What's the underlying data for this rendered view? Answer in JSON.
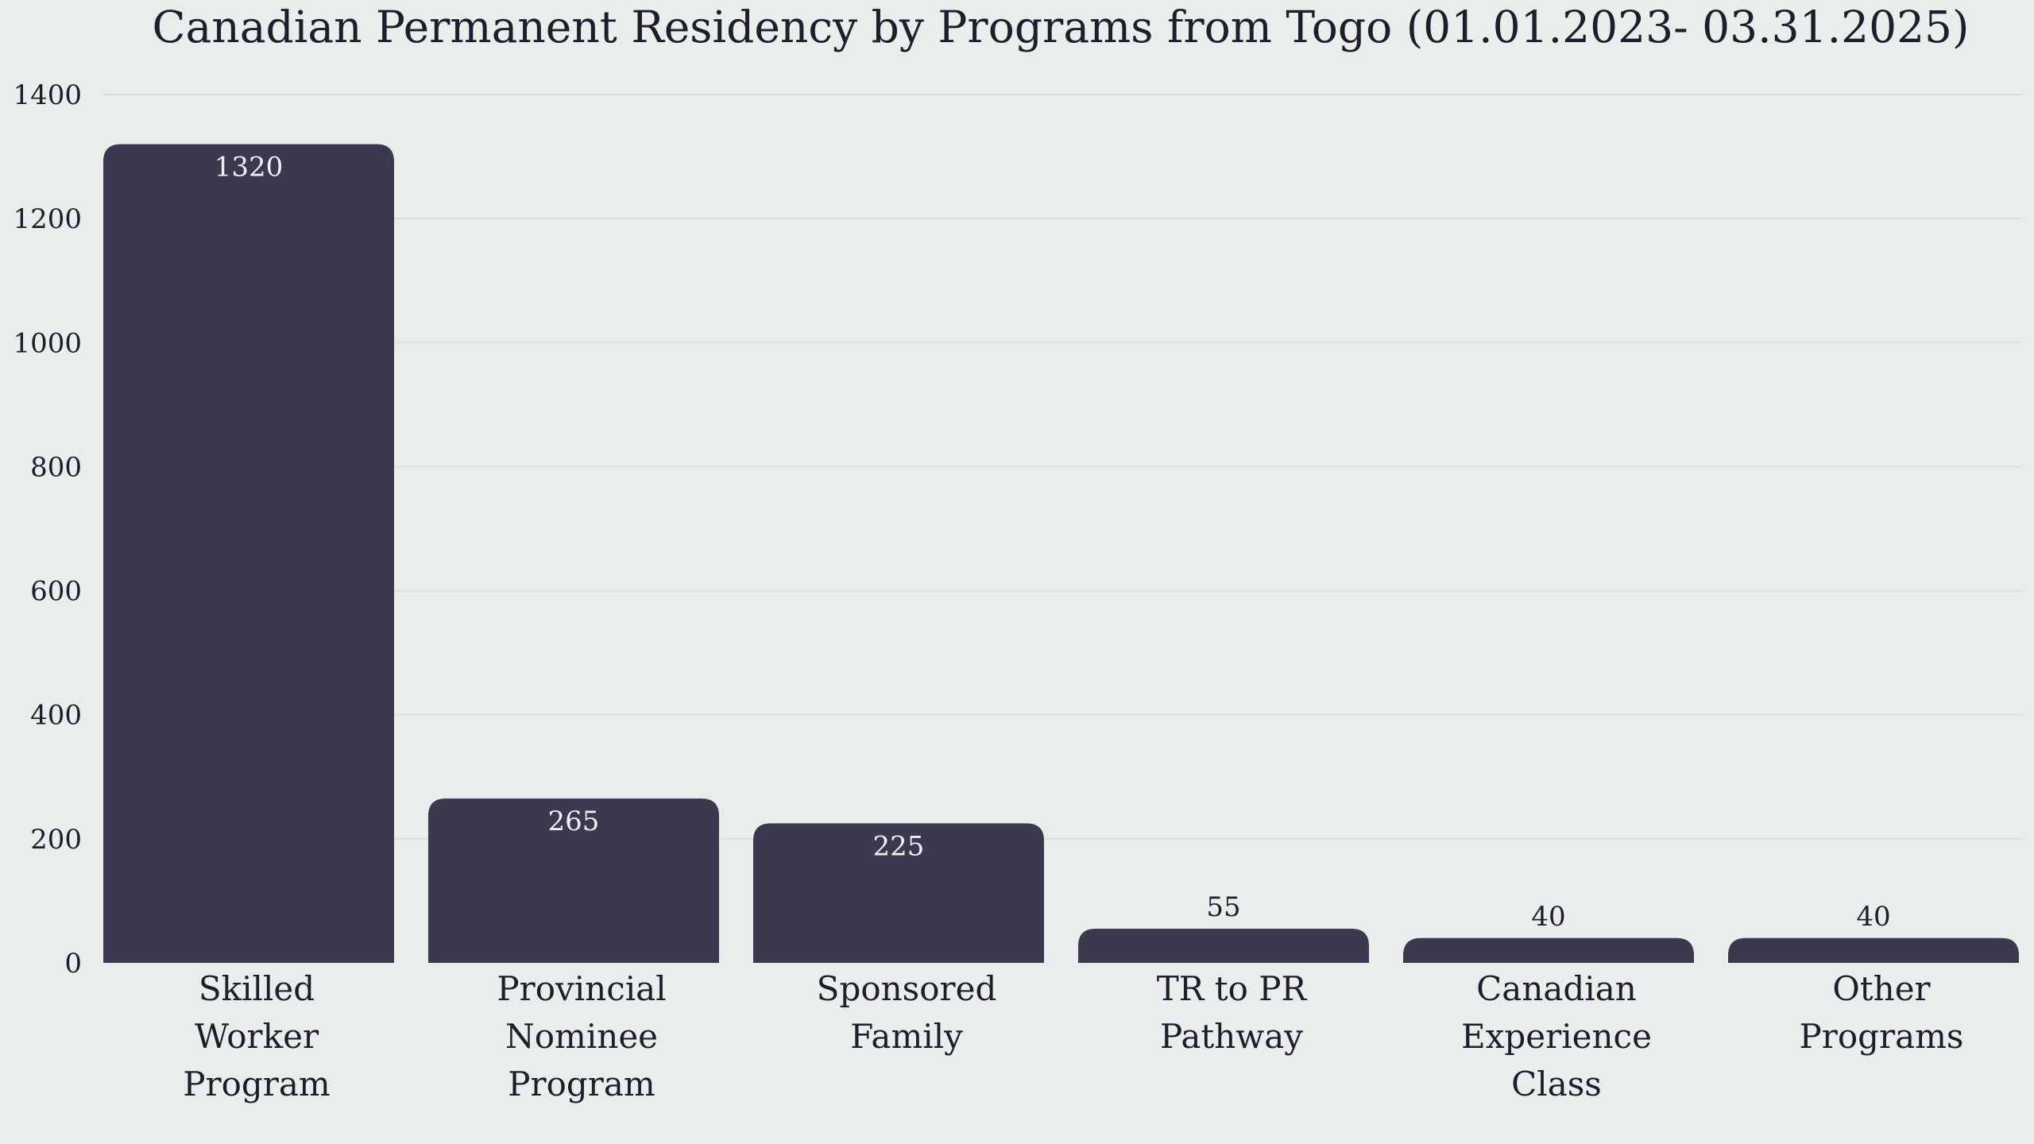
{
  "chart_data": {
    "type": "bar",
    "title": "Canadian Permanent Residency by Programs from Togo (01.01.2023- 03.31.2025)",
    "xlabel": "",
    "ylabel": "",
    "categories": [
      "Skilled Worker Program",
      "Provincial Nominee Program",
      "Sponsored Family",
      "TR to PR Pathway",
      "Canadian Experience Class",
      "Other Programs"
    ],
    "category_lines": [
      [
        "Skilled",
        "Worker",
        "Program"
      ],
      [
        "Provincial",
        "Nominee",
        "Program"
      ],
      [
        "Sponsored",
        "Family"
      ],
      [
        "TR to PR",
        "Pathway"
      ],
      [
        "Canadian",
        "Experience",
        "Class"
      ],
      [
        "Other",
        "Programs"
      ]
    ],
    "values": [
      1320,
      265,
      225,
      55,
      40,
      40
    ],
    "data_labels": [
      "1320",
      "265",
      "225",
      "55",
      "40",
      "40"
    ],
    "ylim": [
      0,
      1400
    ],
    "yticks": [
      0,
      200,
      400,
      600,
      800,
      1000,
      1200,
      1400
    ],
    "grid": true,
    "legend": "none",
    "colors": {
      "bar": "#3c384f",
      "background": "#e9edec",
      "grid": "#d9dfde",
      "label_inside": "#f0f0f4",
      "label_outside": "#1f1d2b"
    }
  }
}
